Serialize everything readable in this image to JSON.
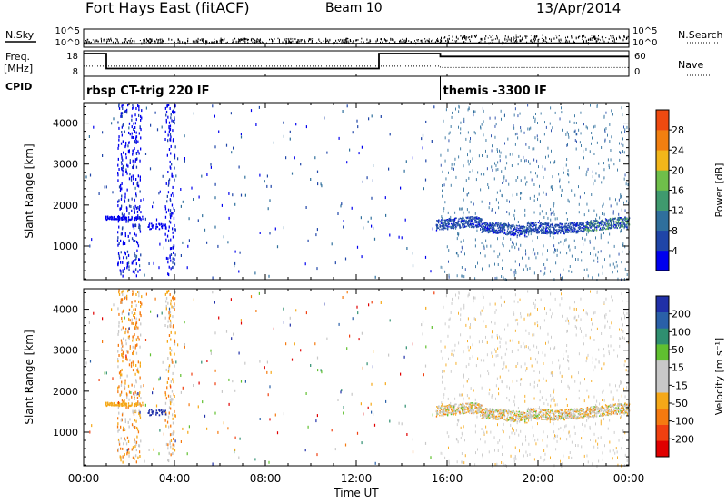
{
  "header": {
    "station": "Fort Hays East (fitACF)",
    "beam": "Beam 10",
    "date": "13/Apr/2014"
  },
  "labels": {
    "nsky": "N.Sky",
    "nsearch": "N.Search",
    "freq_line1": "Freq.",
    "freq_line2": "[MHz]",
    "nave": "Nave",
    "cpid": "CPID",
    "xlabel": "Time UT"
  },
  "colors": {
    "power_scale": [
      "#0000ee",
      "#1f45a8",
      "#2f6f9c",
      "#3f9a6e",
      "#6fbf4a",
      "#f2b61a",
      "#f27f10",
      "#ee4a10",
      "#e81a10",
      "#dd0000"
    ],
    "velocity_scale": [
      "#e00000",
      "#f04010",
      "#f57a10",
      "#f5a818",
      "#c8c8c8",
      "#c8c8c8",
      "#60c030",
      "#2f8f70",
      "#2a60a8",
      "#2030a8"
    ]
  },
  "chart_data": [
    {
      "type": "line",
      "name": "noise-panel",
      "left_axis": {
        "label": "N.Sky",
        "ticks": [
          "10^5",
          "10^0"
        ]
      },
      "right_axis": {
        "label": "N.Search",
        "ticks": [
          "10^5",
          "10^0"
        ]
      },
      "series": [
        {
          "name": "N.Sky",
          "style": "solid",
          "x_hours": [
            0,
            4,
            8,
            12,
            15.7,
            20,
            24
          ],
          "level_log10": [
            0.25,
            0.3,
            0.35,
            0.35,
            0.5,
            0.5,
            0.5
          ]
        },
        {
          "name": "N.Search",
          "style": "dotted",
          "x_hours": [
            0,
            4,
            8,
            12,
            15.7,
            20,
            24
          ],
          "level_log10": [
            0.35,
            0.4,
            0.4,
            0.4,
            0.55,
            0.55,
            0.55
          ]
        }
      ]
    },
    {
      "type": "line",
      "name": "frequency-panel",
      "left_axis": {
        "label": "Freq. [MHz]",
        "ticks": [
          18,
          8
        ]
      },
      "right_axis": {
        "label": "Nave",
        "ticks": [
          60,
          0
        ]
      },
      "series": [
        {
          "name": "Freq.",
          "style": "solid",
          "x_hours": [
            0,
            1.0,
            1.0,
            13.0,
            13.0,
            15.7,
            15.7,
            24
          ],
          "y_mhz": [
            18,
            18,
            10.5,
            10.5,
            18,
            18,
            16.5,
            16.5
          ]
        },
        {
          "name": "Nave",
          "style": "dotted",
          "x_hours": [
            0,
            15.7,
            15.7,
            24
          ],
          "y_nave": [
            22,
            22,
            18,
            18
          ]
        }
      ]
    },
    {
      "type": "table",
      "name": "cpid-panel",
      "segments": [
        {
          "start_hour": 0.0,
          "label": "rbsp CT-trig 220 IF"
        },
        {
          "start_hour": 15.7,
          "label": "themis -3300 IF"
        }
      ]
    },
    {
      "type": "scatter",
      "name": "power-panel",
      "title": "",
      "xlabel": "",
      "ylabel": "Slant Range [km]",
      "xlim_hours": [
        0,
        24
      ],
      "ylim": [
        180,
        4500
      ],
      "xticks": [
        "00:00",
        "04:00",
        "08:00",
        "12:00",
        "16:00",
        "20:00",
        "00:00"
      ],
      "yticks": [
        1000,
        2000,
        3000,
        4000
      ],
      "colorbar": {
        "label": "Power [dB]",
        "range": [
          0,
          32
        ],
        "ticks": [
          4,
          8,
          12,
          16,
          20,
          24,
          28
        ]
      },
      "features": [
        {
          "description_value": "main echo band",
          "start_hour": 15.5,
          "end_hour": 24,
          "range_km": [
            1350,
            1700
          ],
          "value_db": [
            4,
            16
          ]
        },
        {
          "description_value": "near-range clutter",
          "start_hour": 2.8,
          "end_hour": 3.6,
          "range_km": [
            1450,
            1600
          ],
          "value_db": [
            4,
            8
          ]
        }
      ]
    },
    {
      "type": "scatter",
      "name": "velocity-panel",
      "title": "",
      "xlabel": "Time UT",
      "ylabel": "Slant Range [km]",
      "xlim_hours": [
        0,
        24
      ],
      "ylim": [
        180,
        4500
      ],
      "xticks": [
        "00:00",
        "04:00",
        "08:00",
        "12:00",
        "16:00",
        "20:00",
        "00:00"
      ],
      "yticks": [
        1000,
        2000,
        3000,
        4000
      ],
      "colorbar": {
        "label": "Velocity [m s⁻¹]",
        "range": [
          -300,
          300
        ],
        "ticks": [
          -200,
          -100,
          -50,
          -15,
          15,
          50,
          100,
          200
        ]
      },
      "features": [
        {
          "description_value": "main echo band",
          "start_hour": 15.5,
          "end_hour": 24,
          "range_km": [
            1350,
            1700
          ],
          "value_ms": [
            -50,
            15
          ]
        }
      ]
    }
  ]
}
